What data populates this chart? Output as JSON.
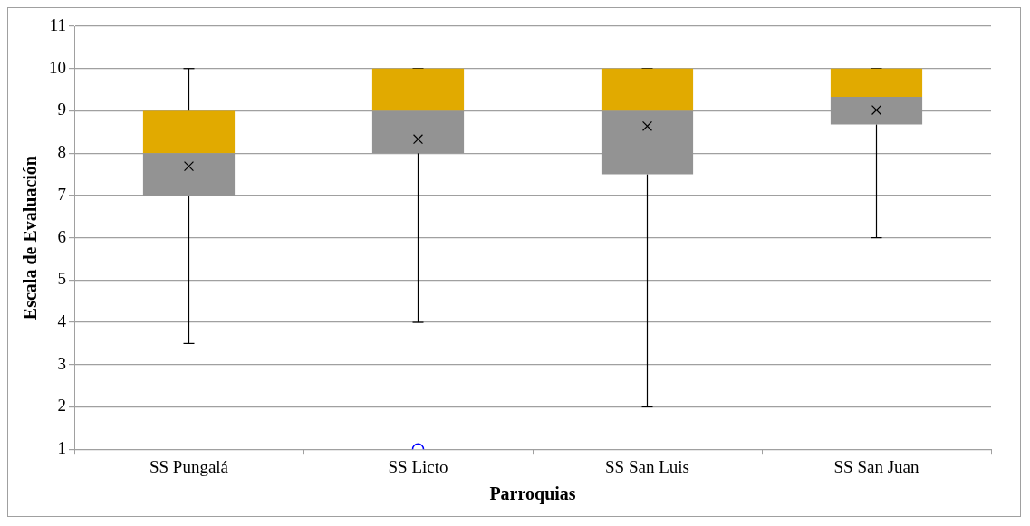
{
  "chart_data": {
    "type": "box",
    "xlabel": "Parroquias",
    "ylabel": "Escala de Evaluación",
    "categories": [
      "SS Pungalá",
      "SS Licto",
      "SS San Luis",
      "SS San Juan"
    ],
    "boxes": [
      {
        "low": 3.5,
        "q1": 7,
        "median": 8,
        "q3": 9,
        "high": 10,
        "mean": 7.69
      },
      {
        "low": 4,
        "q1": 8,
        "median": 9,
        "q3": 10,
        "high": 10,
        "mean": 8.33,
        "outliers": [
          1
        ]
      },
      {
        "low": 2,
        "q1": 7.5,
        "median": 9,
        "q3": 10,
        "high": 10,
        "mean": 8.64
      },
      {
        "low": 6,
        "q1": 8.68,
        "median": 9.33,
        "q3": 10,
        "high": 10,
        "mean": 9.02
      }
    ],
    "colors": [
      [
        "#939393",
        "#e1aa00"
      ],
      [
        "#939393",
        "#e1aa00"
      ],
      [
        "#939393",
        "#e1aa00"
      ],
      [
        "#939393",
        "#e1aa00"
      ]
    ],
    "ylim": [
      1,
      11
    ],
    "yticks": [
      1,
      2,
      3,
      4,
      5,
      6,
      7,
      8,
      9,
      10,
      11
    ],
    "grid": "y",
    "marker": "cross",
    "legend": false
  }
}
